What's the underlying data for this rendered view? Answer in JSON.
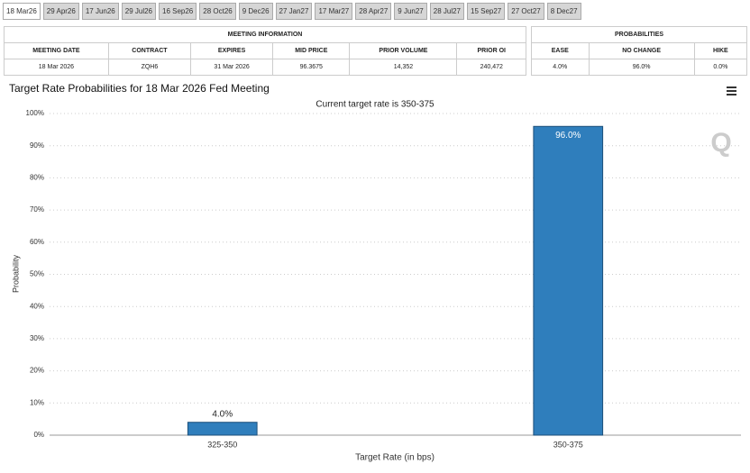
{
  "tabs": [
    "18 Mar26",
    "29 Apr26",
    "17 Jun26",
    "29 Jul26",
    "16 Sep26",
    "28 Oct26",
    "9 Dec26",
    "27 Jan27",
    "17 Mar27",
    "28 Apr27",
    "9 Jun27",
    "28 Jul27",
    "15 Sep27",
    "27 Oct27",
    "8 Dec27"
  ],
  "meeting_table": {
    "title": "MEETING INFORMATION",
    "headers": [
      "MEETING DATE",
      "CONTRACT",
      "EXPIRES",
      "MID PRICE",
      "PRIOR VOLUME",
      "PRIOR OI"
    ],
    "row": [
      "18 Mar 2026",
      "ZQH6",
      "31 Mar 2026",
      "96.3675",
      "14,352",
      "240,472"
    ]
  },
  "prob_table": {
    "title": "PROBABILITIES",
    "headers": [
      "EASE",
      "NO CHANGE",
      "HIKE"
    ],
    "row": [
      "4.0%",
      "96.0%",
      "0.0%"
    ]
  },
  "chart_data": {
    "type": "bar",
    "title": "Target Rate Probabilities for 18 Mar 2026 Fed Meeting",
    "subtitle": "Current target rate is 350-375",
    "categories": [
      "325-350",
      "350-375"
    ],
    "values": [
      4.0,
      96.0
    ],
    "value_labels": [
      "4.0%",
      "96.0%"
    ],
    "color": "#2f7ebc",
    "xlabel": "Target Rate (in bps)",
    "ylabel": "Probability",
    "ylim": [
      0,
      100
    ],
    "yticks": [
      {
        "value": 0,
        "label": "0%"
      },
      {
        "value": 10,
        "label": "10%"
      },
      {
        "value": 20,
        "label": "20%"
      },
      {
        "value": 30,
        "label": "30%"
      },
      {
        "value": 40,
        "label": "40%"
      },
      {
        "value": 50,
        "label": "50%"
      },
      {
        "value": 60,
        "label": "60%"
      },
      {
        "value": 70,
        "label": "70%"
      },
      {
        "value": 80,
        "label": "80%"
      },
      {
        "value": 90,
        "label": "90%"
      },
      {
        "value": 100,
        "label": "100%"
      }
    ],
    "grid": true
  }
}
